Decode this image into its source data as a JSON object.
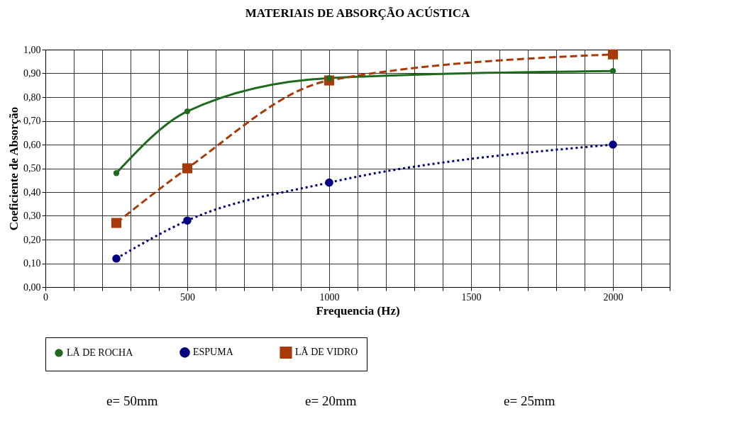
{
  "chart_data": {
    "type": "line",
    "title": "MATERIAIS DE ABSORÇÃO ACÚSTICA",
    "xlabel": "Frequencia (Hz)",
    "ylabel": "Coeficiente de Absorção",
    "x": [
      250,
      500,
      1000,
      2000
    ],
    "series": [
      {
        "name": "LÃ DE ROCHA",
        "color": "#1e6b1e",
        "values": [
          0.48,
          0.74,
          0.88,
          0.91
        ],
        "marker": "circle",
        "line_style": "solid"
      },
      {
        "name": "ESPUMA",
        "color": "#000080",
        "values": [
          0.12,
          0.28,
          0.44,
          0.6
        ],
        "marker": "circle",
        "line_style": "dotted"
      },
      {
        "name": "LÃ DE VIDRO",
        "color": "#a83a0a",
        "values": [
          0.27,
          0.5,
          0.87,
          0.98
        ],
        "marker": "square",
        "line_style": "dashed"
      }
    ],
    "xlim": [
      0,
      2200
    ],
    "xticks": [
      0,
      {
        "value": 100,
        "label": null
      },
      {
        "value": 200,
        "label": null
      },
      {
        "value": 300,
        "label": null
      },
      {
        "value": 400,
        "label": null
      },
      500,
      {
        "value": 600,
        "label": null
      },
      {
        "value": 700,
        "label": null
      },
      {
        "value": 800,
        "label": null
      },
      {
        "value": 900,
        "label": null
      },
      1000,
      {
        "value": 1100,
        "label": null
      },
      {
        "value": 1200,
        "label": null
      },
      {
        "value": 1300,
        "label": null
      },
      {
        "value": 1400,
        "label": null
      },
      1500,
      {
        "value": 1600,
        "label": null
      },
      {
        "value": 1700,
        "label": null
      },
      {
        "value": 1800,
        "label": null
      },
      {
        "value": 1900,
        "label": null
      },
      2000,
      {
        "value": 2100,
        "label": null
      },
      {
        "value": 2200,
        "label": null
      }
    ],
    "ylim": [
      0,
      1
    ],
    "yticks": [
      {
        "value": 0,
        "label": "0,00"
      },
      {
        "value": 0.1,
        "label": "0,10"
      },
      {
        "value": 0.2,
        "label": "0,20"
      },
      {
        "value": 0.3,
        "label": "0,30"
      },
      {
        "value": 0.4,
        "label": "0,40"
      },
      {
        "value": 0.5,
        "label": "0,50"
      },
      {
        "value": 0.6,
        "label": "0,60"
      },
      {
        "value": 0.7,
        "label": "0,70"
      },
      {
        "value": 0.8,
        "label": "0,80"
      },
      {
        "value": 0.9,
        "label": "0,90"
      },
      {
        "value": 1,
        "label": "1,00"
      }
    ],
    "grid": true,
    "legend": "bottom",
    "annotations": [
      "e= 50mm",
      "e= 20mm",
      "e= 25mm"
    ]
  }
}
